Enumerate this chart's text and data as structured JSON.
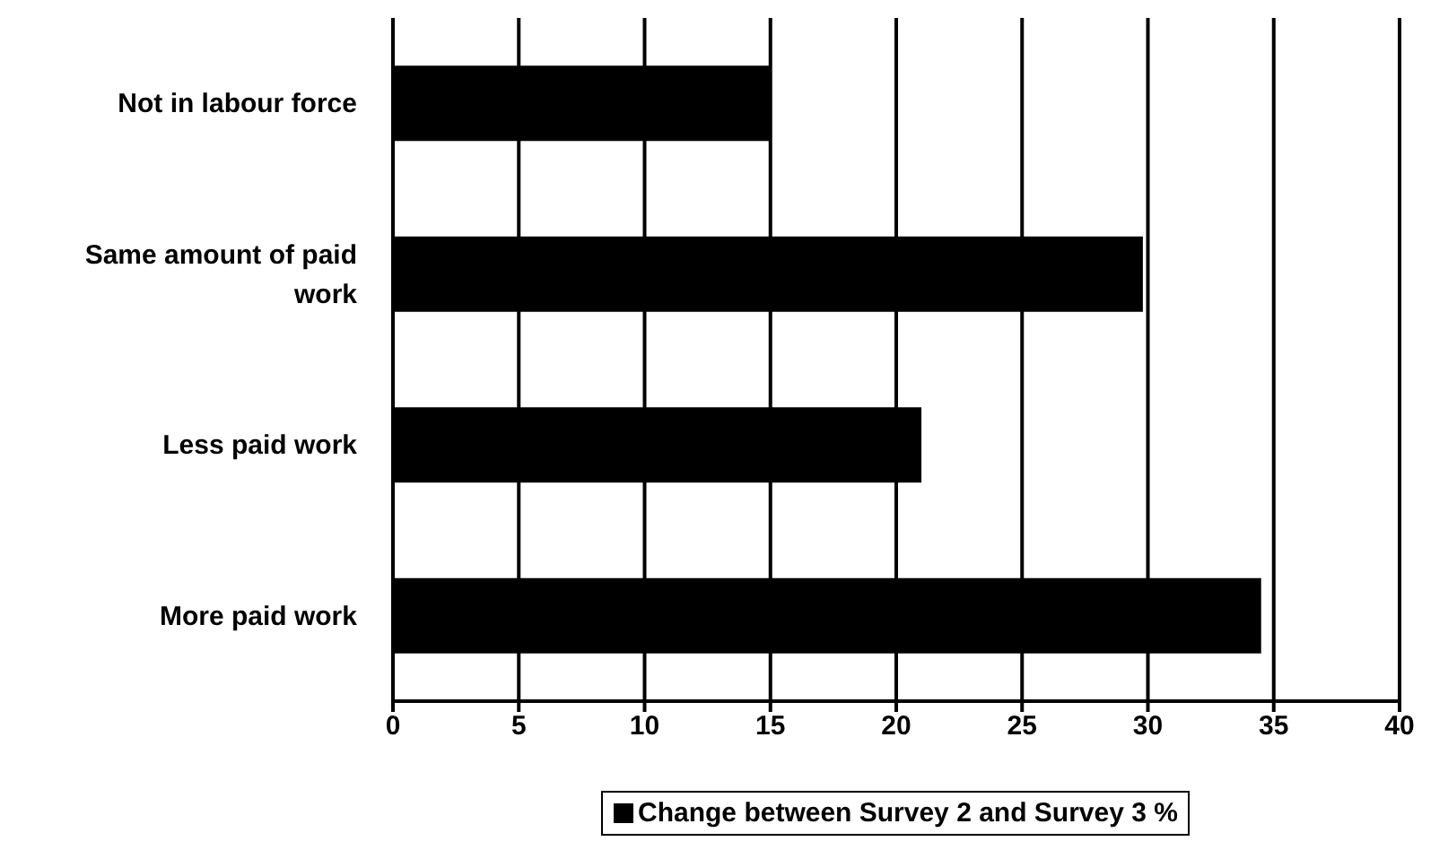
{
  "chart_data": {
    "type": "bar",
    "orientation": "horizontal",
    "categories": [
      "Not in labour force",
      "Same amount of paid work",
      "Less paid work",
      "More paid work"
    ],
    "series": [
      {
        "name": "Change between Survey 2 and Survey 3 %",
        "color": "#000000",
        "values": [
          15,
          29.8,
          21,
          34.5
        ]
      }
    ],
    "xlim": [
      0,
      40
    ],
    "xticks": [
      0,
      5,
      10,
      15,
      20,
      25,
      30,
      35,
      40
    ],
    "grid": "x",
    "legend": "bottom"
  }
}
